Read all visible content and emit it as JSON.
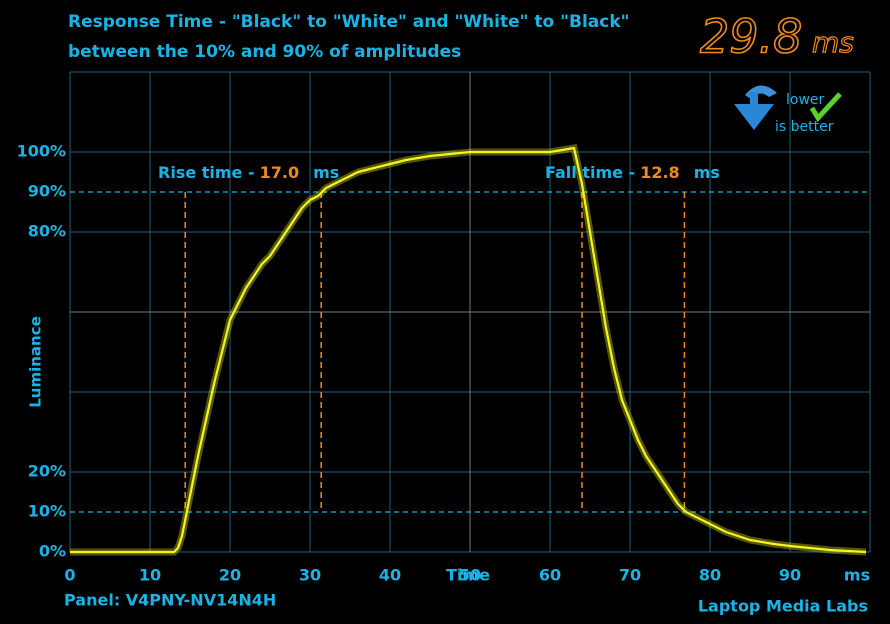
{
  "chart_data": {
    "type": "line",
    "title": "Response Time - \"Black\" to \"White\" and \"White\" to \"Black\"",
    "subtitle": "between the 10% and 90% of amplitudes",
    "result": {
      "value": "29.8",
      "unit": "ms"
    },
    "badge": [
      "lower",
      "is better"
    ],
    "x_label": "Time",
    "x_unit": "ms",
    "y_label": "Luminance",
    "panel": "Panel: V4PNY-NV14N4H",
    "credit": "Laptop Media Labs",
    "xlim": [
      0,
      100
    ],
    "xticks": [
      0,
      10,
      20,
      30,
      40,
      50,
      60,
      70,
      80,
      90
    ],
    "ylim": [
      0,
      120
    ],
    "yticks": [
      {
        "value": 0,
        "label": "0%"
      },
      {
        "value": 10,
        "label": "10%"
      },
      {
        "value": 20,
        "label": "20%"
      },
      {
        "value": 80,
        "label": "80%"
      },
      {
        "value": 90,
        "label": "90%"
      },
      {
        "value": 100,
        "label": "100%"
      }
    ],
    "color": "#f5f51e",
    "x": [
      0,
      5,
      10,
      13,
      13.5,
      14,
      15,
      16,
      17,
      18,
      19,
      20,
      21,
      22,
      23,
      24,
      25,
      26,
      27,
      28,
      29,
      30,
      31,
      32,
      34,
      36,
      38,
      40,
      42,
      45,
      50,
      55,
      60,
      63,
      64,
      65,
      66,
      67,
      68,
      69,
      70,
      71,
      72,
      73,
      74,
      75,
      76,
      77,
      78,
      80,
      82,
      85,
      88,
      90,
      95,
      99.5
    ],
    "values": [
      0,
      0,
      0,
      0,
      1,
      4,
      14,
      24,
      33,
      42,
      50,
      58,
      62,
      66,
      69,
      72,
      74,
      77,
      80,
      83,
      86,
      88,
      89,
      91,
      93,
      95,
      96,
      97,
      98,
      99,
      100,
      100,
      100,
      101,
      92,
      80,
      68,
      56,
      46,
      38,
      33,
      28,
      24,
      21,
      18,
      15,
      12,
      10,
      9,
      7,
      5,
      3,
      2,
      1.5,
      0.5,
      0
    ],
    "annotations": [
      {
        "label": "Rise time -",
        "value": "17.0",
        "unit": "ms",
        "markers": [
          14.4,
          31.4
        ]
      },
      {
        "label": "Fall time -",
        "value": "12.8",
        "unit": "ms",
        "markers": [
          64.0,
          76.8
        ]
      }
    ]
  }
}
